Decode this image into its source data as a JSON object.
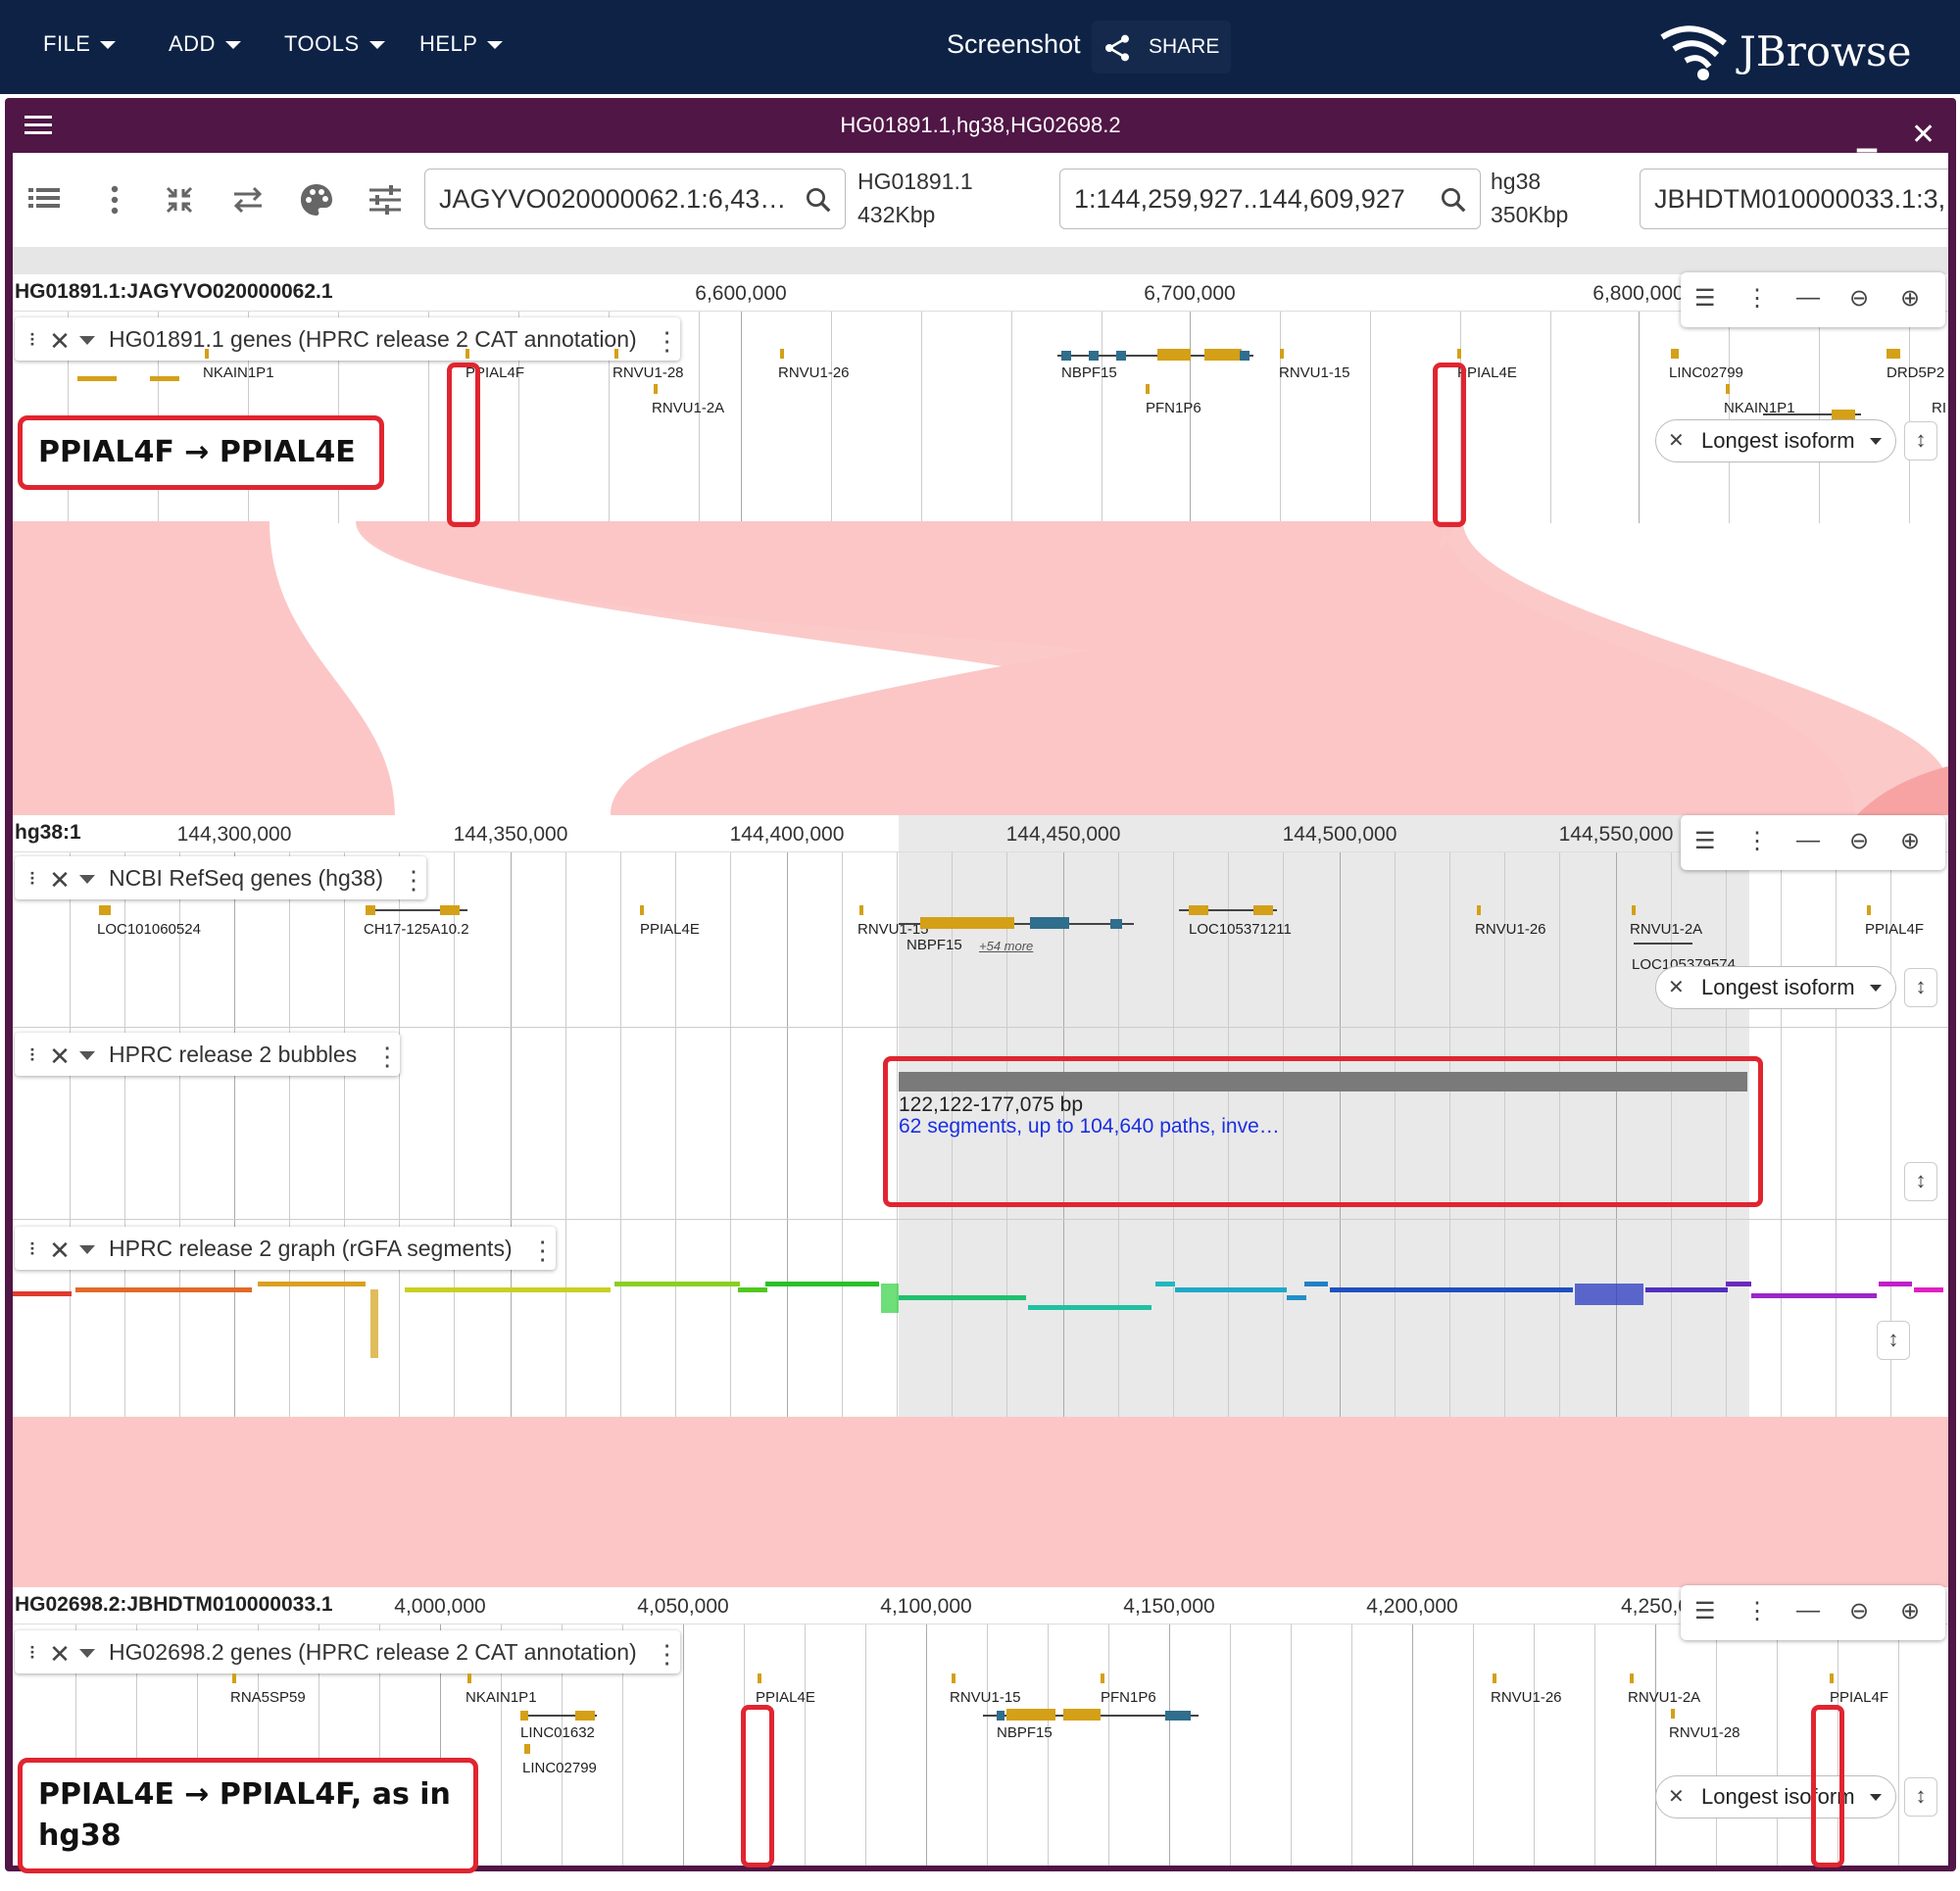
{
  "app": {
    "menus": [
      "FILE",
      "ADD",
      "TOOLS",
      "HELP"
    ],
    "screenshot_label": "Screenshot",
    "share_label": "SHARE",
    "logo_text": "JBrowse",
    "colors": {
      "appbar": "#0d2245",
      "view_frame": "#501646",
      "gene_feature": "#d4a017",
      "synteny": "#fcc6c6",
      "annotation_red": "#e02530"
    }
  },
  "view": {
    "title": "HG01891.1,hg38,HG02698.2",
    "minimize_icon": "minimize-icon",
    "close_icon": "close-icon"
  },
  "toolbar": {
    "loc1": "JAGYVO020000062.1:6,43…",
    "asm1_name": "HG01891.1",
    "asm1_size": "432Kbp",
    "loc2": "1:144,259,927..144,609,927",
    "asm2_name": "hg38",
    "asm2_size": "350Kbp",
    "loc3": "JBHDTM010000033.1:3,"
  },
  "panels": {
    "top": {
      "refname": "HG01891.1:JAGYVO020000062.1",
      "ticks": [
        "6,600,000",
        "6,700,000",
        "6,800,000"
      ],
      "track_name": "HG01891.1 genes (HPRC release 2 CAT annotation)",
      "genes": [
        "NKAIN1P1",
        "PPIAL4F",
        "RNVU1-28",
        "RNVU1-2A",
        "RNVU1-26",
        "NBPF15",
        "PFN1P6",
        "RNVU1-15",
        "PPIAL4E",
        "LINC02799",
        "NKAIN1P1",
        "DRD5P2",
        "RI"
      ],
      "isoform": "Longest isoform",
      "callout": "PPIAL4F → PPIAL4E"
    },
    "middle": {
      "refname": "hg38:1",
      "ticks": [
        "144,300,000",
        "144,350,000",
        "144,400,000",
        "144,450,000",
        "144,500,000",
        "144,550,000"
      ],
      "genes_track": {
        "name": "NCBI RefSeq genes (hg38)",
        "genes": [
          "LOC101060524",
          "CH17-125A10.2",
          "PPIAL4E",
          "RNVU1-15",
          "NBPF15",
          "LOC105371211",
          "RNVU1-26",
          "RNVU1-2A",
          "LOC105379574",
          "PPIAL4F"
        ],
        "more": "+54 more",
        "isoform": "Longest isoform"
      },
      "bubbles_track": {
        "name": "HPRC release 2 bubbles",
        "size": "122,122-177,075 bp",
        "desc": "62 segments, up to 104,640 paths, inve…"
      },
      "graph_track": {
        "name": "HPRC release 2 graph (rGFA segments)"
      }
    },
    "bottom": {
      "refname": "HG02698.2:JBHDTM010000033.1",
      "ticks": [
        "4,000,000",
        "4,050,000",
        "4,100,000",
        "4,150,000",
        "4,200,000",
        "4,250,0"
      ],
      "track_name": "HG02698.2 genes (HPRC release 2 CAT annotation)",
      "genes": [
        "RNA5SP59",
        "NKAIN1P1",
        "LINC01632",
        "LINC02799",
        "PPIAL4E",
        "RNVU1-15",
        "NBPF15",
        "PFN1P6",
        "RNVU1-26",
        "RNVU1-2A",
        "RNVU1-28",
        "PPIAL4F"
      ],
      "isoform": "Longest isoform",
      "callout": "PPIAL4E → PPIAL4F, as in hg38"
    }
  }
}
